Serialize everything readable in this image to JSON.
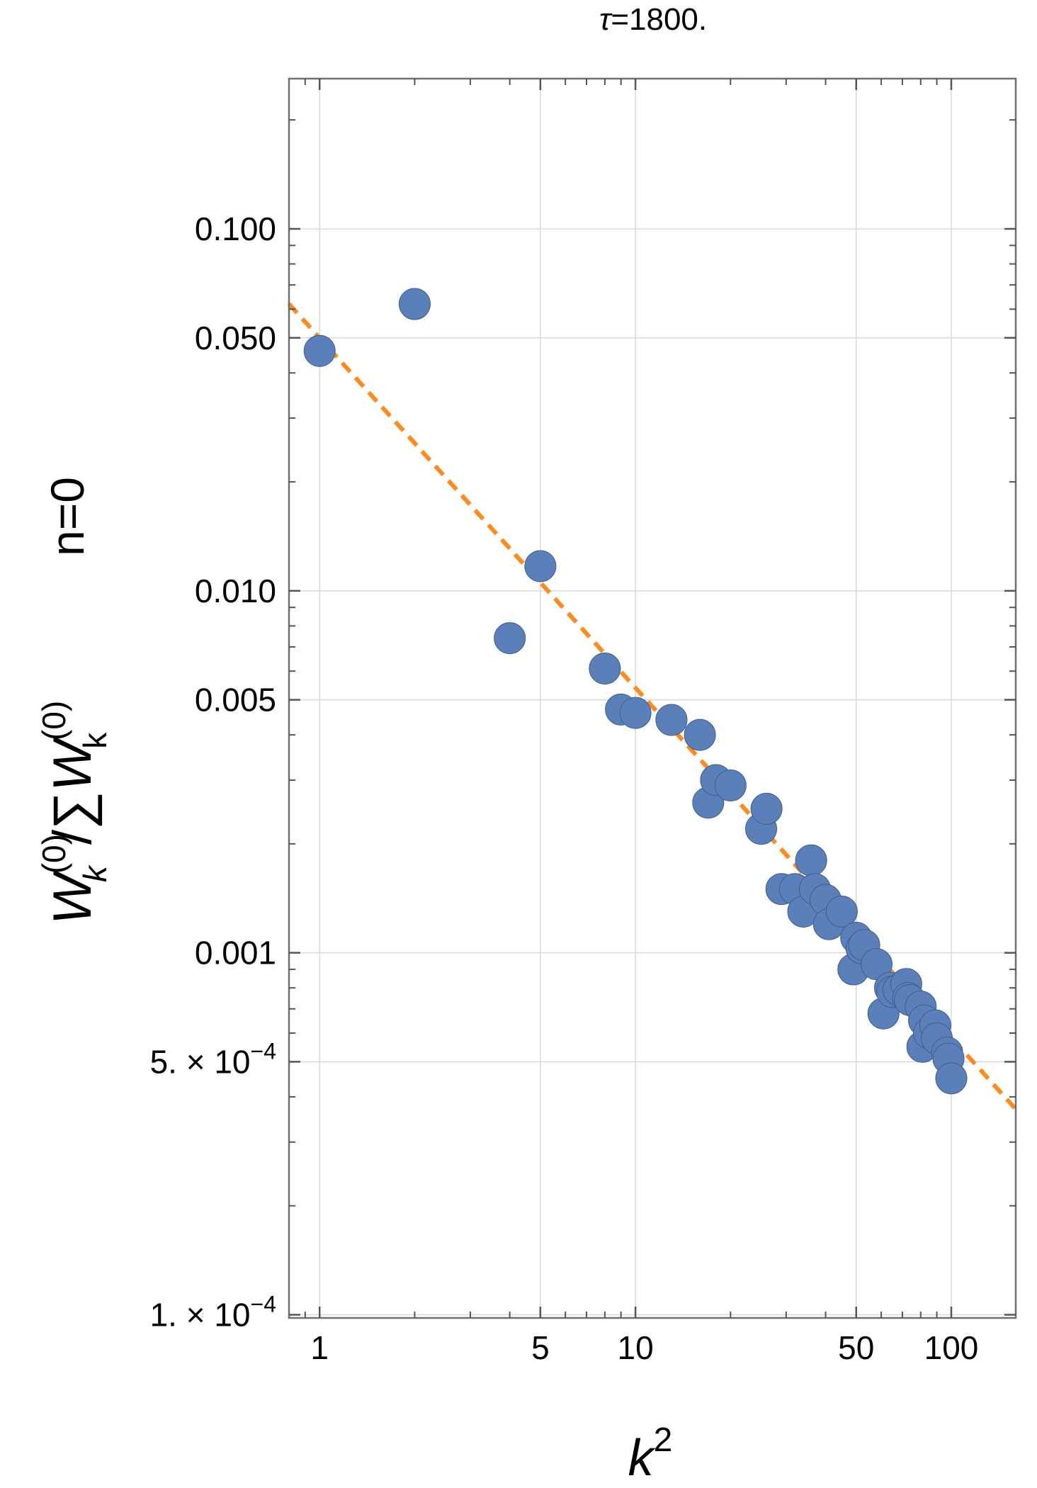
{
  "chart_data": {
    "type": "scatter",
    "title": "τ=1800.",
    "title_symbol": "τ",
    "title_value": "=1800.",
    "xlabel": "k",
    "xlabel_sup": "2",
    "ylabel_left": "n=0",
    "ylabel_right": "W(0)k/∑W(0)k",
    "ylabel_parts": {
      "w1": "W",
      "w1_sup": "(0)",
      "w1_sub": "k",
      "sep": "/∑",
      "w2": "W",
      "w2_sup": "(0)",
      "w2_sub": "k"
    },
    "x_scale": "log",
    "y_scale": "log",
    "xlim": [
      0.8,
      160
    ],
    "ylim": [
      9.8e-05,
      0.26
    ],
    "grid": true,
    "x_ticks": [
      {
        "value": 1,
        "label": "1"
      },
      {
        "value": 5,
        "label": "5"
      },
      {
        "value": 10,
        "label": "10"
      },
      {
        "value": 50,
        "label": "50"
      },
      {
        "value": 100,
        "label": "100"
      }
    ],
    "y_ticks": [
      {
        "value": 0.1,
        "label": "0.100"
      },
      {
        "value": 0.05,
        "label": "0.050"
      },
      {
        "value": 0.01,
        "label": "0.010"
      },
      {
        "value": 0.005,
        "label": "0.005"
      },
      {
        "value": 0.001,
        "label": "0.001"
      },
      {
        "value": 0.0005,
        "label_base": "5. × 10",
        "label_exp": "−4"
      },
      {
        "value": 0.0001,
        "label_base": "1. × 10",
        "label_exp": "−4"
      }
    ],
    "series": [
      {
        "name": "data",
        "kind": "points",
        "color": "#5b7fb8",
        "points": [
          [
            1,
            0.046
          ],
          [
            2,
            0.062
          ],
          [
            4,
            0.0074
          ],
          [
            5,
            0.0117
          ],
          [
            8,
            0.0061
          ],
          [
            9,
            0.0047
          ],
          [
            10,
            0.0046
          ],
          [
            13,
            0.0044
          ],
          [
            16,
            0.004
          ],
          [
            17,
            0.0026
          ],
          [
            18,
            0.003
          ],
          [
            20,
            0.0029
          ],
          [
            25,
            0.0022
          ],
          [
            26,
            0.0025
          ],
          [
            29,
            0.0015
          ],
          [
            32,
            0.0015
          ],
          [
            34,
            0.0013
          ],
          [
            36,
            0.0018
          ],
          [
            37,
            0.0015
          ],
          [
            40,
            0.0014
          ],
          [
            41,
            0.0012
          ],
          [
            45,
            0.0013
          ],
          [
            49,
            0.0009
          ],
          [
            50,
            0.0011
          ],
          [
            52,
            0.00103
          ],
          [
            53,
            0.00105
          ],
          [
            58,
            0.00093
          ],
          [
            61,
            0.00068
          ],
          [
            64,
            0.0008
          ],
          [
            65,
            0.00078
          ],
          [
            68,
            0.00079
          ],
          [
            72,
            0.00082
          ],
          [
            73,
            0.00075
          ],
          [
            74,
            0.00074
          ],
          [
            80,
            0.00071
          ],
          [
            81,
            0.00055
          ],
          [
            82,
            0.00065
          ],
          [
            85,
            0.0006
          ],
          [
            89,
            0.00063
          ],
          [
            90,
            0.00058
          ],
          [
            97,
            0.00053
          ],
          [
            98,
            0.00051
          ],
          [
            100,
            0.00045
          ]
        ]
      },
      {
        "name": "fit",
        "kind": "dashed-line",
        "color": "#ff8a1e",
        "points": [
          [
            0.8,
            0.062
          ],
          [
            160,
            0.00037
          ]
        ]
      }
    ]
  }
}
